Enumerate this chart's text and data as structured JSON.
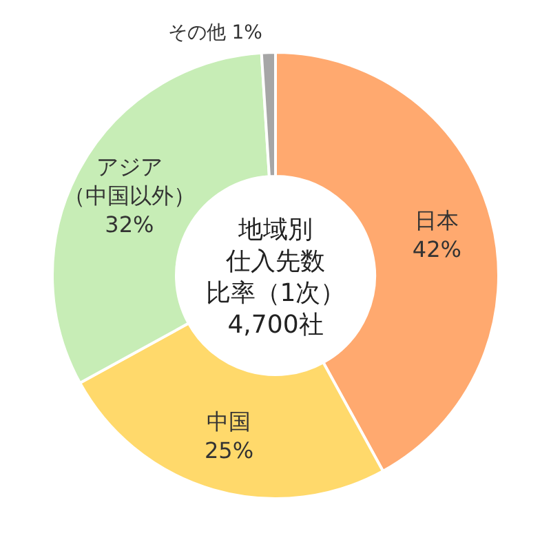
{
  "chart_data": {
    "type": "donut",
    "title": "地域別仕入先数比率（1次）",
    "subtitle": "4,700社",
    "categories": [
      "日本",
      "中国",
      "アジア（中国以外）",
      "その他"
    ],
    "values": [
      42,
      25,
      32,
      1
    ],
    "colors": [
      "#ffa96f",
      "#ffd96b",
      "#c7edb6",
      "#a6a6a6"
    ],
    "value_labels": [
      "42%",
      "25%",
      "32%",
      "1%"
    ]
  }
}
